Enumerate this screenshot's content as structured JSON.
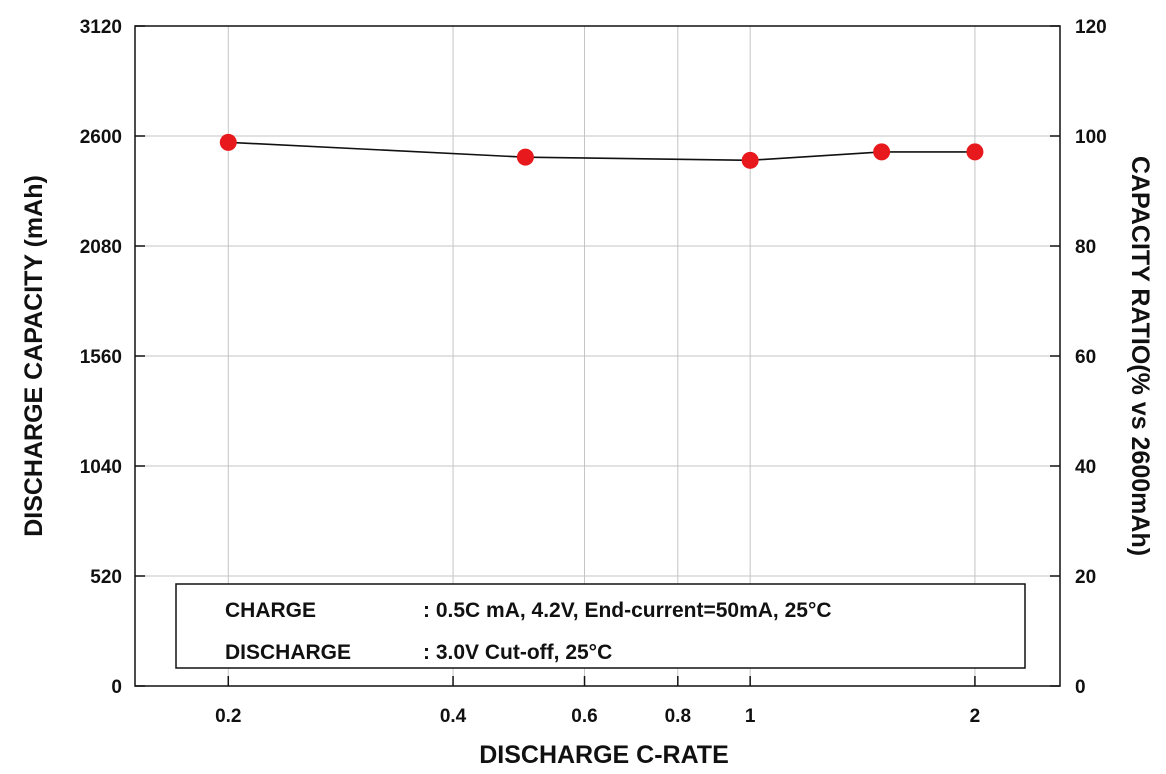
{
  "chart_data": {
    "type": "line",
    "xlabel": "DISCHARGE C-RATE",
    "ylabel": "DISCHARGE CAPACITY (mAh)",
    "y2label": "CAPACITY RATIO(% vs 2600mAh)",
    "x_scale": "log",
    "xlim": [
      0.15,
      2.6
    ],
    "ylim": [
      0,
      3120
    ],
    "y2lim": [
      0,
      120
    ],
    "x_ticks": [
      0.2,
      0.4,
      0.6,
      0.8,
      1,
      2
    ],
    "x_tick_labels": [
      "0.2",
      "0.4",
      "0.6",
      "0.8",
      "1",
      "2"
    ],
    "y_ticks": [
      0,
      520,
      1040,
      1560,
      2080,
      2600,
      3120
    ],
    "y_tick_labels": [
      "0",
      "520",
      "1040",
      "1560",
      "2080",
      "2600",
      "3120"
    ],
    "y2_ticks": [
      0,
      20,
      40,
      60,
      80,
      100,
      120
    ],
    "y2_tick_labels": [
      "0",
      "20",
      "40",
      "60",
      "80",
      "100",
      "120"
    ],
    "grid": true,
    "series": [
      {
        "x": [
          0.2,
          0.5,
          1,
          1.5,
          2
        ],
        "y": [
          2570,
          2500,
          2485,
          2525,
          2525
        ],
        "color": "#e8191d",
        "line_color": "#111111"
      }
    ],
    "legend_box": {
      "rows": [
        {
          "label": "CHARGE",
          "value": ": 0.5C mA, 4.2V, End-current=50mA, 25°C"
        },
        {
          "label": "DISCHARGE",
          "value": ": 3.0V Cut-off, 25°C"
        }
      ]
    }
  }
}
